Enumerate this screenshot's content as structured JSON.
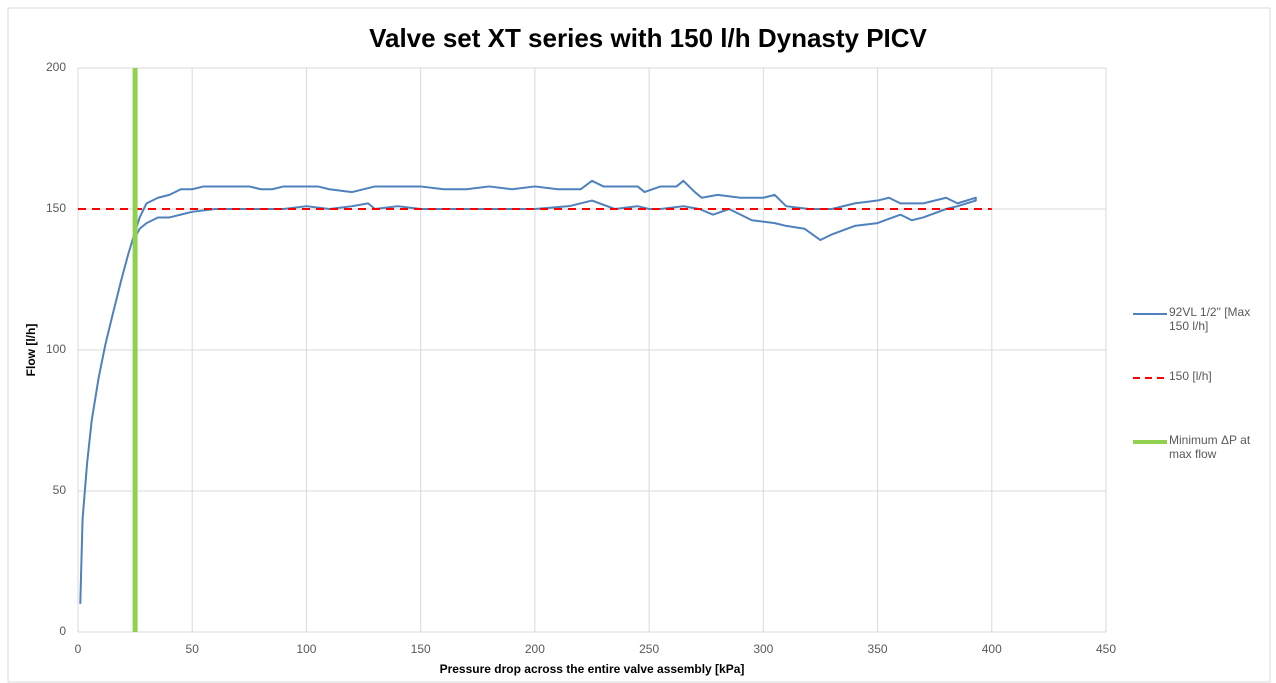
{
  "chart_data": {
    "type": "line",
    "title": "Valve set XT series with 150 l/h Dynasty PICV",
    "x_label": "Pressure drop across  the entire valve  assembly [kPa]",
    "y_label": "Flow  [l/h]",
    "xlim": [
      0,
      450
    ],
    "xticks": [
      0,
      50,
      100,
      150,
      200,
      250,
      300,
      350,
      400,
      450
    ],
    "ylim": [
      0,
      200
    ],
    "yticks": [
      0,
      50,
      100,
      150,
      200
    ],
    "grid": true,
    "legend": "right",
    "series": [
      {
        "name": "92VL 1/2\" [Max 150 l/h]",
        "color": "#4f81bd",
        "dash": false,
        "x": [
          1,
          2,
          4,
          6,
          9,
          12,
          15,
          19,
          22,
          25,
          27,
          30,
          35,
          40,
          45,
          50,
          55,
          60,
          65,
          70,
          75,
          80,
          85,
          90,
          100,
          105,
          110,
          120,
          130,
          140,
          150,
          160,
          170,
          180,
          190,
          200,
          210,
          220,
          225,
          230,
          240,
          245,
          248,
          255,
          262,
          265,
          270,
          273,
          280,
          290,
          300,
          305,
          310,
          320,
          330,
          340,
          350,
          355,
          360,
          370,
          380,
          385,
          393,
          393,
          385,
          380,
          370,
          365,
          360,
          350,
          340,
          330,
          325,
          318,
          310,
          305,
          295,
          290,
          285,
          278,
          272,
          265,
          255,
          250,
          245,
          235,
          225,
          215,
          200,
          180,
          160,
          150,
          140,
          130,
          127,
          120,
          110,
          100,
          90,
          80,
          60,
          50,
          45,
          40,
          35,
          30,
          27,
          25
        ],
        "values": [
          10,
          40,
          60,
          75,
          90,
          102,
          112,
          125,
          134,
          142,
          147,
          152,
          154,
          155,
          157,
          157,
          158,
          158,
          158,
          158,
          158,
          157,
          157,
          158,
          158,
          158,
          157,
          156,
          158,
          158,
          158,
          157,
          157,
          158,
          157,
          158,
          157,
          157,
          160,
          158,
          158,
          158,
          156,
          158,
          158,
          160,
          156,
          154,
          155,
          154,
          154,
          155,
          151,
          150,
          150,
          152,
          153,
          154,
          152,
          152,
          154,
          152,
          154,
          153,
          151,
          150,
          147,
          146,
          148,
          145,
          144,
          141,
          139,
          143,
          144,
          145,
          146,
          148,
          150,
          148,
          150,
          151,
          150,
          150,
          151,
          150,
          153,
          151,
          150,
          150,
          150,
          150,
          151,
          150,
          152,
          151,
          150,
          151,
          150,
          150,
          150,
          149,
          148,
          147,
          147,
          145,
          143,
          140
        ]
      },
      {
        "name": "150 [l/h]",
        "color": "#ff0000",
        "dash": true,
        "x": [
          0,
          400
        ],
        "values": [
          150,
          150
        ]
      },
      {
        "name": "Minimum ΔP at max flow",
        "color": "#92d050",
        "dash": false,
        "wide": true,
        "x": [
          25,
          25
        ],
        "values": [
          0,
          200
        ]
      }
    ]
  }
}
